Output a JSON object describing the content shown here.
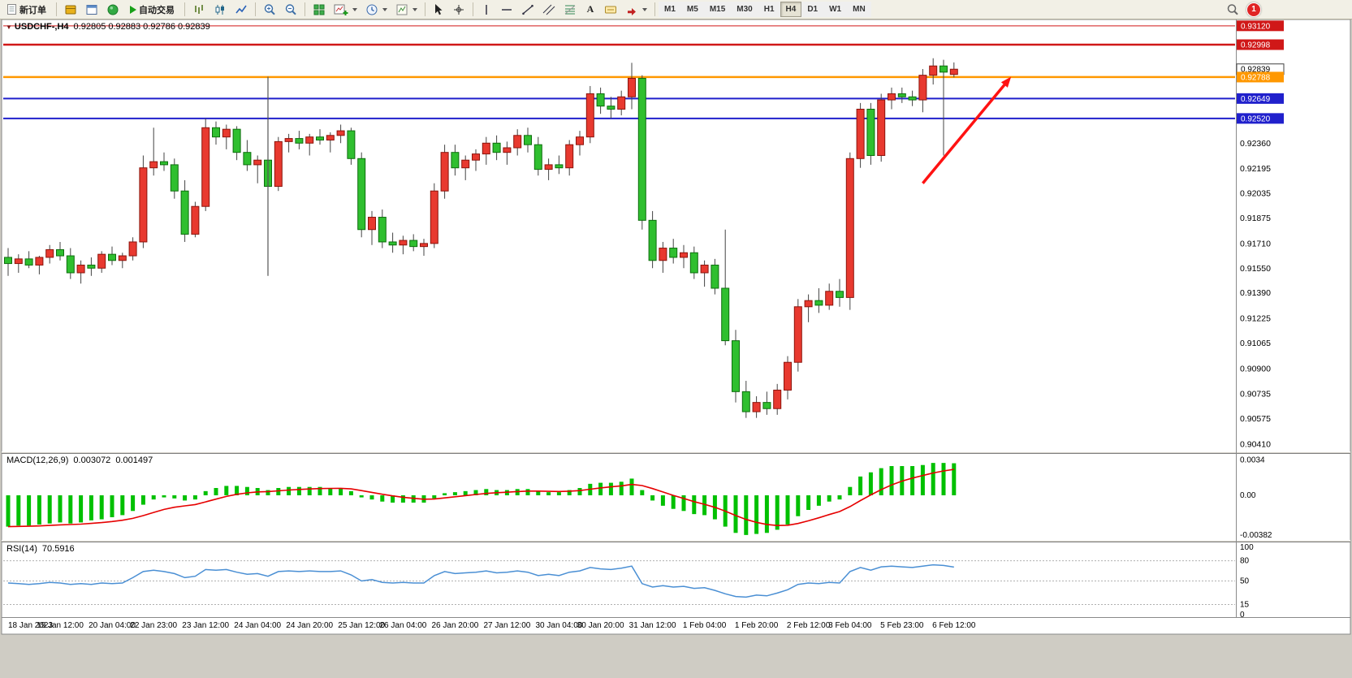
{
  "toolbar": {
    "new_order_label": "新订单",
    "auto_trading_label": "自动交易",
    "timeframes": [
      "M1",
      "M5",
      "M15",
      "M30",
      "H1",
      "H4",
      "D1",
      "W1",
      "MN"
    ],
    "active_timeframe": "H4",
    "notification_count": "1",
    "icon_names": [
      "new-order-icon",
      "market-watch-icon",
      "data-window-icon",
      "navigator-icon",
      "play-icon",
      "bar-chart-icon",
      "candlestick-chart-icon",
      "line-chart-icon",
      "zoom-in-icon",
      "zoom-out-icon",
      "tile-windows-icon",
      "new-chart-icon",
      "periods-clock-icon",
      "templates-icon",
      "cursor-icon",
      "crosshair-icon",
      "vertical-line-icon",
      "horizontal-line-icon",
      "trendline-icon",
      "channel-icon",
      "fibonacci-icon",
      "text-icon",
      "label-icon",
      "shapes-arrow-icon",
      "search-icon",
      "notification-badge"
    ]
  },
  "chart_data": {
    "type": "candlestick",
    "symbol_title": "USDCHF-,H4",
    "ohlc_text": "0.92805 0.92883 0.92786 0.92839",
    "ylim": [
      0.903625,
      0.931611
    ],
    "candles": [
      [
        0.9162,
        0.9168,
        0.915,
        0.9158
      ],
      [
        0.9158,
        0.9164,
        0.9152,
        0.9161
      ],
      [
        0.9161,
        0.9166,
        0.9155,
        0.9157
      ],
      [
        0.9157,
        0.9163,
        0.9151,
        0.9162
      ],
      [
        0.9162,
        0.917,
        0.9158,
        0.9167
      ],
      [
        0.9167,
        0.9172,
        0.916,
        0.9163
      ],
      [
        0.9163,
        0.9168,
        0.9148,
        0.9152
      ],
      [
        0.9152,
        0.916,
        0.9145,
        0.9157
      ],
      [
        0.9157,
        0.9162,
        0.915,
        0.9155
      ],
      [
        0.9155,
        0.9166,
        0.9152,
        0.9164
      ],
      [
        0.9164,
        0.9169,
        0.9157,
        0.916
      ],
      [
        0.916,
        0.9165,
        0.9155,
        0.9163
      ],
      [
        0.9163,
        0.9175,
        0.916,
        0.9172
      ],
      [
        0.9172,
        0.9228,
        0.9168,
        0.922
      ],
      [
        0.922,
        0.9246,
        0.9215,
        0.9224
      ],
      [
        0.9224,
        0.923,
        0.9218,
        0.9222
      ],
      [
        0.9222,
        0.9226,
        0.92,
        0.9205
      ],
      [
        0.9205,
        0.9212,
        0.9172,
        0.9177
      ],
      [
        0.9177,
        0.9198,
        0.9175,
        0.9195
      ],
      [
        0.9195,
        0.9252,
        0.9192,
        0.9246
      ],
      [
        0.9246,
        0.925,
        0.9235,
        0.924
      ],
      [
        0.924,
        0.9248,
        0.9232,
        0.9245
      ],
      [
        0.9245,
        0.9247,
        0.9225,
        0.923
      ],
      [
        0.923,
        0.9238,
        0.9218,
        0.9222
      ],
      [
        0.9222,
        0.9228,
        0.921,
        0.9225
      ],
      [
        0.9225,
        0.9232,
        0.9205,
        0.9208
      ],
      [
        0.9208,
        0.924,
        0.9205,
        0.9237
      ],
      [
        0.9237,
        0.9242,
        0.923,
        0.9239
      ],
      [
        0.9239,
        0.9244,
        0.9232,
        0.9236
      ],
      [
        0.9236,
        0.9242,
        0.9228,
        0.924
      ],
      [
        0.924,
        0.9245,
        0.9235,
        0.9238
      ],
      [
        0.9238,
        0.9243,
        0.923,
        0.9241
      ],
      [
        0.9241,
        0.9248,
        0.9236,
        0.9244
      ],
      [
        0.9244,
        0.9246,
        0.9222,
        0.9226
      ],
      [
        0.9226,
        0.923,
        0.9175,
        0.918
      ],
      [
        0.918,
        0.9192,
        0.917,
        0.9188
      ],
      [
        0.9188,
        0.9193,
        0.9168,
        0.9172
      ],
      [
        0.9172,
        0.9178,
        0.9165,
        0.917
      ],
      [
        0.917,
        0.9176,
        0.9164,
        0.9173
      ],
      [
        0.9173,
        0.9177,
        0.9166,
        0.9169
      ],
      [
        0.9169,
        0.9174,
        0.9163,
        0.9171
      ],
      [
        0.9171,
        0.921,
        0.9168,
        0.9205
      ],
      [
        0.9205,
        0.9235,
        0.92,
        0.923
      ],
      [
        0.923,
        0.9235,
        0.9215,
        0.922
      ],
      [
        0.922,
        0.9228,
        0.9212,
        0.9225
      ],
      [
        0.9225,
        0.9232,
        0.9218,
        0.9229
      ],
      [
        0.9229,
        0.924,
        0.9222,
        0.9236
      ],
      [
        0.9236,
        0.9241,
        0.9225,
        0.923
      ],
      [
        0.923,
        0.9237,
        0.9222,
        0.9233
      ],
      [
        0.9233,
        0.9245,
        0.9228,
        0.9241
      ],
      [
        0.9241,
        0.9246,
        0.923,
        0.9235
      ],
      [
        0.9235,
        0.924,
        0.9215,
        0.9219
      ],
      [
        0.9219,
        0.9226,
        0.9212,
        0.9222
      ],
      [
        0.9222,
        0.9228,
        0.9216,
        0.922
      ],
      [
        0.922,
        0.9238,
        0.9215,
        0.9235
      ],
      [
        0.9235,
        0.9244,
        0.9228,
        0.924
      ],
      [
        0.924,
        0.9273,
        0.9236,
        0.9268
      ],
      [
        0.9268,
        0.9272,
        0.9255,
        0.926
      ],
      [
        0.926,
        0.9266,
        0.9252,
        0.9258
      ],
      [
        0.9258,
        0.927,
        0.9254,
        0.9266
      ],
      [
        0.9266,
        0.9288,
        0.9258,
        0.9278
      ],
      [
        0.9278,
        0.928,
        0.918,
        0.9186
      ],
      [
        0.9186,
        0.9192,
        0.9155,
        0.916
      ],
      [
        0.916,
        0.9172,
        0.9152,
        0.9168
      ],
      [
        0.9168,
        0.9174,
        0.9158,
        0.9162
      ],
      [
        0.9162,
        0.917,
        0.9155,
        0.9165
      ],
      [
        0.9165,
        0.9169,
        0.9148,
        0.9152
      ],
      [
        0.9152,
        0.916,
        0.9143,
        0.9157
      ],
      [
        0.9157,
        0.9161,
        0.9138,
        0.9142
      ],
      [
        0.9142,
        0.918,
        0.9105,
        0.9108
      ],
      [
        0.9108,
        0.9115,
        0.9068,
        0.9075
      ],
      [
        0.9075,
        0.9082,
        0.9058,
        0.9062
      ],
      [
        0.9062,
        0.9072,
        0.9058,
        0.9068
      ],
      [
        0.9068,
        0.9075,
        0.906,
        0.9064
      ],
      [
        0.9064,
        0.908,
        0.906,
        0.9076
      ],
      [
        0.9076,
        0.9098,
        0.907,
        0.9094
      ],
      [
        0.9094,
        0.9135,
        0.9088,
        0.913
      ],
      [
        0.913,
        0.9138,
        0.912,
        0.9134
      ],
      [
        0.9134,
        0.9142,
        0.9126,
        0.9131
      ],
      [
        0.9131,
        0.9145,
        0.9128,
        0.914
      ],
      [
        0.914,
        0.9148,
        0.913,
        0.9136
      ],
      [
        0.9136,
        0.923,
        0.9128,
        0.9226
      ],
      [
        0.9226,
        0.9262,
        0.922,
        0.9258
      ],
      [
        0.9258,
        0.9262,
        0.9222,
        0.9228
      ],
      [
        0.9228,
        0.9268,
        0.9224,
        0.9264
      ],
      [
        0.9264,
        0.9272,
        0.9258,
        0.9268
      ],
      [
        0.9268,
        0.9272,
        0.9262,
        0.9266
      ],
      [
        0.9266,
        0.927,
        0.926,
        0.9264
      ],
      [
        0.9264,
        0.9284,
        0.9256,
        0.928
      ],
      [
        0.928,
        0.9291,
        0.9274,
        0.9286
      ],
      [
        0.9286,
        0.929,
        0.9228,
        0.9282
      ],
      [
        0.92805,
        0.92883,
        0.92786,
        0.92839
      ]
    ],
    "price_axis": {
      "ticks": [
        "0.92360",
        "0.92195",
        "0.92035",
        "0.91875",
        "0.91710",
        "0.91550",
        "0.91390",
        "0.91225",
        "0.91065",
        "0.90900",
        "0.90735",
        "0.90575",
        "0.90410"
      ],
      "tags": [
        {
          "price": 0.9312,
          "label": "0.93120",
          "bg": "#d01818",
          "fg": "#ffffff",
          "line_width": 1
        },
        {
          "price": 0.92998,
          "label": "0.92998",
          "bg": "#d01818",
          "fg": "#ffffff",
          "line_width": 2.5
        },
        {
          "price": 0.92839,
          "label": "0.92839",
          "bg": "#ffffff",
          "fg": "#000000",
          "border": "#404040",
          "line_width": 0
        },
        {
          "price": 0.92788,
          "label": "0.92788",
          "bg": "#ff9800",
          "fg": "#ffffff",
          "line_width": 2.5
        },
        {
          "price": 0.92649,
          "label": "0.92649",
          "bg": "#2020cc",
          "fg": "#ffffff",
          "line_width": 2
        },
        {
          "price": 0.9252,
          "label": "0.92520",
          "bg": "#2020cc",
          "fg": "#ffffff",
          "line_width": 2
        }
      ]
    },
    "time_axis": {
      "labels": [
        "18 Jan 2023",
        "19 Jan 12:00",
        "20 Jan 04:00",
        "22 Jan 23:00",
        "23 Jan 12:00",
        "24 Jan 04:00",
        "24 Jan 20:00",
        "25 Jan 12:00",
        "26 Jan 04:00",
        "26 Jan 20:00",
        "27 Jan 12:00",
        "30 Jan 04:00",
        "30 Jan 20:00",
        "31 Jan 12:00",
        "1 Feb 04:00",
        "1 Feb 20:00",
        "2 Feb 12:00",
        "3 Feb 04:00",
        "5 Feb 23:00",
        "6 Feb 12:00"
      ]
    },
    "macd": {
      "title": "MACD(12,26,9)",
      "macd_value": "0.003072",
      "signal_value": "0.001497",
      "signal_period": 9,
      "ylim": [
        -0.004278,
        0.003967
      ],
      "scale": [
        "0.0034",
        "0.00",
        "-0.00382"
      ],
      "histogram": [
        -0.003,
        -0.0029,
        -0.0029,
        -0.0028,
        -0.0027,
        -0.0026,
        -0.0027,
        -0.0026,
        -0.0024,
        -0.0023,
        -0.0021,
        -0.0019,
        -0.0015,
        -0.0009,
        -0.0004,
        -0.0002,
        -0.0003,
        -0.0005,
        -0.0004,
        0.0004,
        0.0007,
        0.0009,
        0.0009,
        0.0008,
        0.0007,
        0.0005,
        0.0007,
        0.0008,
        0.0008,
        0.0008,
        0.0008,
        0.0007,
        0.0007,
        0.0004,
        -0.0002,
        -0.0004,
        -0.0006,
        -0.0007,
        -0.0007,
        -0.0007,
        -0.0007,
        -0.0003,
        0.0002,
        0.0003,
        0.0004,
        0.0005,
        0.0006,
        0.0005,
        0.0005,
        0.0006,
        0.0006,
        0.0004,
        0.0003,
        0.0003,
        0.0005,
        0.0007,
        0.0011,
        0.0012,
        0.0012,
        0.0013,
        0.0016,
        0.0005,
        -0.0005,
        -0.001,
        -0.0013,
        -0.0015,
        -0.0018,
        -0.0019,
        -0.0023,
        -0.003,
        -0.0036,
        -0.0038,
        -0.0037,
        -0.0036,
        -0.0033,
        -0.0028,
        -0.002,
        -0.0014,
        -0.001,
        -0.0006,
        -0.0004,
        0.0008,
        0.0018,
        0.0022,
        0.0026,
        0.0028,
        0.0028,
        0.0028,
        0.0029,
        0.0031,
        0.0031,
        0.00307
      ]
    },
    "rsi": {
      "title": "RSI(14)",
      "value": "70.5916",
      "ylim": [
        -3.61,
        107.23
      ],
      "scale": [
        "100",
        "80",
        "50",
        "15",
        "0"
      ],
      "levels": [
        80,
        50,
        15
      ],
      "values": [
        47,
        46,
        45,
        46,
        48,
        47,
        45,
        46,
        45,
        47,
        46,
        47,
        55,
        64,
        66,
        64,
        61,
        55,
        57,
        67,
        66,
        67,
        63,
        60,
        61,
        57,
        64,
        65,
        64,
        65,
        64,
        64,
        65,
        59,
        50,
        52,
        48,
        47,
        48,
        47,
        47,
        58,
        64,
        61,
        62,
        63,
        65,
        62,
        63,
        65,
        63,
        58,
        60,
        58,
        63,
        65,
        70,
        68,
        67,
        69,
        72,
        46,
        41,
        43,
        41,
        42,
        39,
        40,
        36,
        31,
        27,
        26,
        29,
        28,
        32,
        37,
        45,
        47,
        46,
        48,
        47,
        64,
        70,
        66,
        71,
        72,
        71,
        70,
        72,
        74,
        73,
        70.59
      ]
    },
    "objects": {
      "vline": {
        "bar": 26,
        "price_from": 0.9279,
        "price_to": 0.915
      },
      "arrow": {
        "from_bar": 89,
        "from_price": 0.921,
        "to_bar": 97.5,
        "to_price": 0.9279
      }
    },
    "colors": {
      "bull": "#e8392f",
      "bull_border": "#8b140c",
      "bear": "#2fbf2f",
      "bear_border": "#0e6e0e",
      "wick": "#444444",
      "macd_hist": "#00c000",
      "macd_signal": "#e60000",
      "rsi_line": "#4a8fd4",
      "arrow": "#ff1212",
      "background": "#ffffff"
    }
  }
}
